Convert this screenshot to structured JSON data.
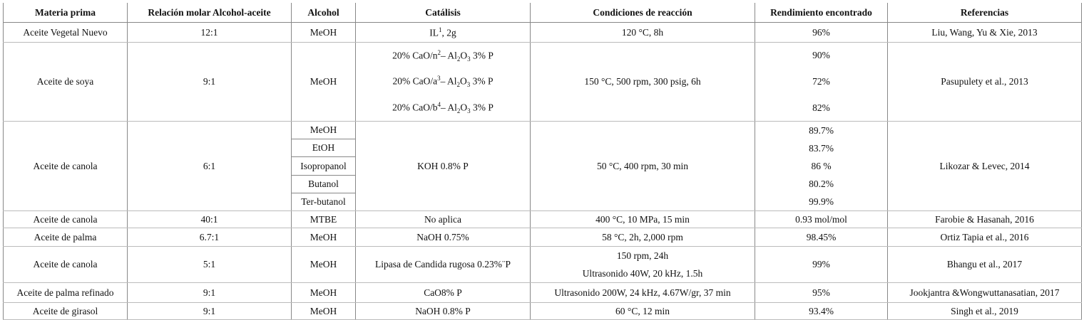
{
  "table": {
    "columns": [
      "Materia prima",
      "Relación molar Alcohol-aceite",
      "Alcohol",
      "Catálisis",
      "Condiciones de reacción",
      "Rendimiento encontrado",
      "Referencias"
    ],
    "rows": [
      [
        "Aceite Vegetal Nuevo",
        "12:1",
        "MeOH",
        [
          [
            "IL",
            {
              "sup": "1"
            },
            ", 2g"
          ]
        ],
        "120 °C, 8h",
        "96%",
        "Liu, Wang, Yu & Xie, 2013"
      ],
      [
        "Aceite de soya",
        "9:1",
        "MeOH",
        [
          [
            "20% CaO/n",
            {
              "sup": "2"
            },
            "– Al",
            {
              "sub": "2"
            },
            "O",
            {
              "sub": "3"
            },
            " 3% P"
          ],
          [
            "20% CaO/a",
            {
              "sup": "3"
            },
            "– Al",
            {
              "sub": "2"
            },
            "O",
            {
              "sub": "3"
            },
            " 3% P"
          ],
          [
            "20% CaO/b",
            {
              "sup": "4"
            },
            "– Al",
            {
              "sub": "2"
            },
            "O",
            {
              "sub": "3"
            },
            " 3% P"
          ]
        ],
        "150 °C, 500 rpm, 300 psig, 6h",
        [
          "90%",
          "72%",
          "82%"
        ],
        "Pasupulety et al., 2013"
      ],
      [
        "Aceite de canola",
        "6:1",
        [
          "MeOH",
          "EtOH",
          "Isopropanol",
          "Butanol",
          "Ter-butanol"
        ],
        "KOH 0.8% P",
        "50 °C, 400 rpm, 30 min",
        [
          "89.7%",
          "83.7%",
          "86 %",
          "80.2%",
          "99.9%"
        ],
        "Likozar & Levec, 2014"
      ],
      [
        "Aceite de canola",
        "40:1",
        "MTBE",
        "No aplica",
        "400 °C, 10 MPa, 15 min",
        "0.93 mol/mol",
        "Farobie & Hasanah, 2016"
      ],
      [
        "Aceite de palma",
        "6.7:1",
        "MeOH",
        "NaOH 0.75%",
        "58 °C, 2h, 2,000 rpm",
        "98.45%",
        "Ortiz Tapia et al., 2016"
      ],
      [
        "Aceite de canola",
        "5:1",
        "MeOH",
        "Lipasa de Candida rugosa 0.23%¨P",
        [
          "150 rpm, 24h",
          "Ultrasonido 40W, 20 kHz, 1.5h"
        ],
        "99%",
        "Bhangu et al., 2017"
      ],
      [
        "Aceite de palma refinado",
        "9:1",
        "MeOH",
        "CaO8% P",
        "Ultrasonido 200W, 24 kHz, 4.67W/gr, 37 min",
        "95%",
        "Jookjantra &Wongwuttanasatian, 2017"
      ],
      [
        "Aceite de girasol",
        "9:1",
        "MeOH",
        "NaOH 0.8% P",
        "60 °C, 12 min",
        "93.4%",
        "Singh et al., 2019"
      ]
    ]
  }
}
